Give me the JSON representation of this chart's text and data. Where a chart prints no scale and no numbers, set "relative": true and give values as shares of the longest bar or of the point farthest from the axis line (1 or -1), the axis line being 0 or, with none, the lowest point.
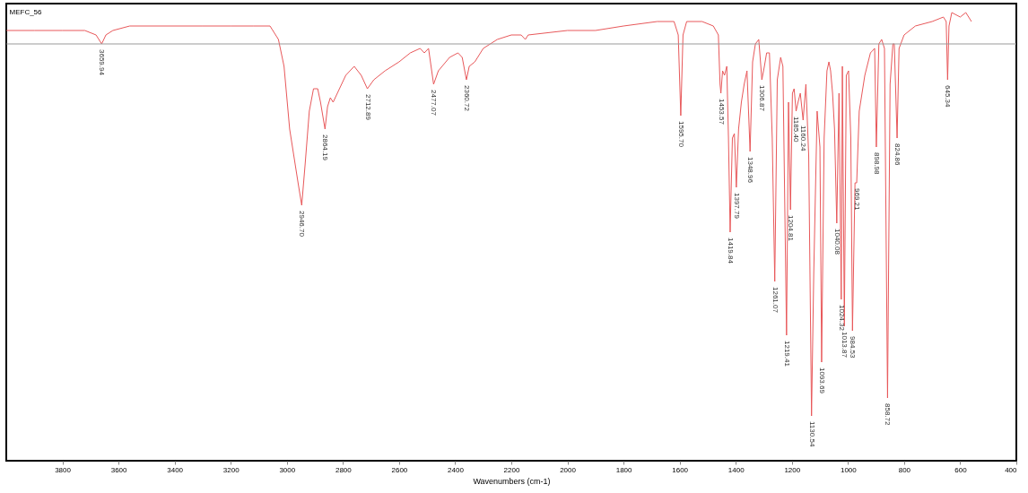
{
  "chart_data": {
    "type": "line",
    "title": "MEFC_56",
    "xlabel": "Wavenumbers (cm-1)",
    "relative": true,
    "xlim": [
      4000,
      400
    ],
    "xticks": [
      3800,
      3600,
      3400,
      3200,
      3000,
      2800,
      2600,
      2400,
      2200,
      2000,
      1800,
      1600,
      1400,
      1200,
      1000,
      800,
      600,
      400
    ],
    "grid": false,
    "tick_labels": "x",
    "series": [
      {
        "color": "#e8585a",
        "x": [
          4000,
          3900,
          3800,
          3720,
          3680,
          3660,
          3645,
          3620,
          3560,
          3300,
          3200,
          3120,
          3060,
          3030,
          3010,
          2990,
          2960,
          2947,
          2935,
          2920,
          2905,
          2890,
          2880,
          2864,
          2855,
          2845,
          2835,
          2820,
          2790,
          2760,
          2735,
          2713,
          2690,
          2650,
          2600,
          2560,
          2525,
          2510,
          2495,
          2477,
          2460,
          2420,
          2390,
          2375,
          2360,
          2350,
          2330,
          2300,
          2250,
          2200,
          2165,
          2150,
          2140,
          2000,
          1900,
          1800,
          1680,
          1620,
          1605,
          1596,
          1588,
          1575,
          1520,
          1480,
          1462,
          1456,
          1453,
          1447,
          1440,
          1432,
          1426,
          1420,
          1412,
          1405,
          1398,
          1390,
          1380,
          1370,
          1360,
          1349,
          1340,
          1330,
          1318,
          1307,
          1298,
          1290,
          1280,
          1270,
          1261,
          1252,
          1240,
          1232,
          1219,
          1212,
          1205,
          1198,
          1192,
          1185,
          1178,
          1170,
          1160,
          1150,
          1140,
          1130,
          1122,
          1110,
          1100,
          1094,
          1085,
          1075,
          1068,
          1062,
          1055,
          1048,
          1040,
          1032,
          1024,
          1020,
          1013,
          1006,
          998,
          990,
          984,
          975,
          969,
          960,
          940,
          920,
          905,
          899,
          890,
          880,
          870,
          859,
          850,
          840,
          835,
          825,
          818,
          800,
          760,
          700,
          660,
          650,
          645,
          640,
          630,
          600,
          580,
          560
        ],
        "values": [
          0.96,
          0.96,
          0.96,
          0.96,
          0.95,
          0.93,
          0.95,
          0.96,
          0.97,
          0.97,
          0.97,
          0.97,
          0.97,
          0.94,
          0.88,
          0.74,
          0.62,
          0.57,
          0.66,
          0.78,
          0.83,
          0.83,
          0.8,
          0.74,
          0.79,
          0.81,
          0.8,
          0.82,
          0.86,
          0.88,
          0.86,
          0.83,
          0.85,
          0.87,
          0.89,
          0.91,
          0.92,
          0.91,
          0.92,
          0.84,
          0.87,
          0.9,
          0.91,
          0.9,
          0.85,
          0.88,
          0.89,
          0.92,
          0.94,
          0.95,
          0.95,
          0.94,
          0.95,
          0.96,
          0.96,
          0.97,
          0.98,
          0.98,
          0.95,
          0.77,
          0.95,
          0.98,
          0.98,
          0.97,
          0.95,
          0.84,
          0.82,
          0.87,
          0.86,
          0.88,
          0.72,
          0.51,
          0.72,
          0.73,
          0.61,
          0.74,
          0.8,
          0.84,
          0.87,
          0.69,
          0.89,
          0.93,
          0.94,
          0.85,
          0.88,
          0.91,
          0.91,
          0.72,
          0.4,
          0.85,
          0.9,
          0.88,
          0.28,
          0.8,
          0.56,
          0.82,
          0.83,
          0.78,
          0.8,
          0.82,
          0.76,
          0.84,
          0.68,
          0.1,
          0.42,
          0.78,
          0.7,
          0.22,
          0.72,
          0.87,
          0.89,
          0.87,
          0.82,
          0.74,
          0.53,
          0.82,
          0.36,
          0.88,
          0.3,
          0.86,
          0.87,
          0.72,
          0.29,
          0.62,
          0.62,
          0.78,
          0.86,
          0.91,
          0.92,
          0.7,
          0.93,
          0.94,
          0.92,
          0.14,
          0.84,
          0.93,
          0.93,
          0.72,
          0.92,
          0.95,
          0.97,
          0.98,
          0.99,
          0.98,
          0.85,
          0.97,
          1.0,
          0.99,
          1.0,
          0.98
        ]
      }
    ],
    "ref_lines": [
      {
        "axis": "y",
        "value": 0.93,
        "color": "#999999"
      }
    ],
    "annotations": [
      {
        "text": "3659.94",
        "x": 3660,
        "y": 0.93
      },
      {
        "text": "2946.70",
        "x": 2947,
        "y": 0.57
      },
      {
        "text": "2864.19",
        "x": 2864,
        "y": 0.74
      },
      {
        "text": "2712.89",
        "x": 2713,
        "y": 0.83
      },
      {
        "text": "2477.07",
        "x": 2477,
        "y": 0.84
      },
      {
        "text": "2360.72",
        "x": 2360,
        "y": 0.85
      },
      {
        "text": "1595.70",
        "x": 1596,
        "y": 0.77
      },
      {
        "text": "1453.57",
        "x": 1453,
        "y": 0.82
      },
      {
        "text": "1419.84",
        "x": 1420,
        "y": 0.51
      },
      {
        "text": "1397.79",
        "x": 1398,
        "y": 0.61
      },
      {
        "text": "1348.96",
        "x": 1349,
        "y": 0.69
      },
      {
        "text": "1306.87",
        "x": 1307,
        "y": 0.85
      },
      {
        "text": "1261.07",
        "x": 1261,
        "y": 0.4
      },
      {
        "text": "1219.41",
        "x": 1219,
        "y": 0.28
      },
      {
        "text": "1204.81",
        "x": 1205,
        "y": 0.56
      },
      {
        "text": "1185.40",
        "x": 1185,
        "y": 0.78
      },
      {
        "text": "1160.24",
        "x": 1160,
        "y": 0.76
      },
      {
        "text": "1130.54",
        "x": 1130,
        "y": 0.1
      },
      {
        "text": "1093.69",
        "x": 1094,
        "y": 0.22
      },
      {
        "text": "1040.08",
        "x": 1040,
        "y": 0.53
      },
      {
        "text": "1024.32",
        "x": 1024,
        "y": 0.36
      },
      {
        "text": "1013.87",
        "x": 1013,
        "y": 0.3
      },
      {
        "text": "984.53",
        "x": 984,
        "y": 0.29
      },
      {
        "text": "969.21",
        "x": 969,
        "y": 0.62
      },
      {
        "text": "898.98",
        "x": 899,
        "y": 0.7
      },
      {
        "text": "858.72",
        "x": 859,
        "y": 0.14
      },
      {
        "text": "824.86",
        "x": 825,
        "y": 0.72
      },
      {
        "text": "645.34",
        "x": 645,
        "y": 0.85
      }
    ]
  }
}
